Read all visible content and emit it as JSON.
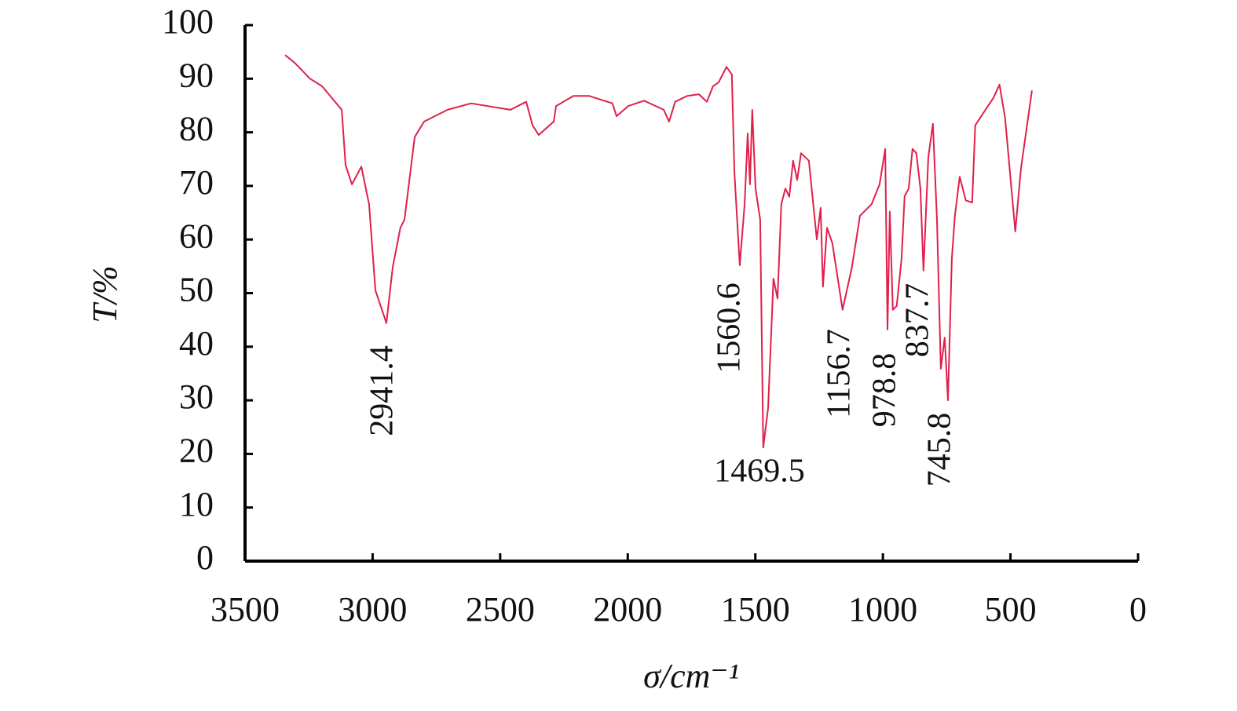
{
  "chart_data": {
    "type": "line",
    "x_label": "σ/cm⁻¹",
    "y_label": "T/%",
    "xlim": [
      3500,
      0
    ],
    "xticks": [
      3500,
      3000,
      2500,
      2000,
      1500,
      1000,
      500,
      0
    ],
    "ylim": [
      0,
      100
    ],
    "yticks": [
      0,
      10,
      20,
      30,
      40,
      50,
      60,
      70,
      80,
      90,
      100
    ],
    "annotations": [
      "2941.4",
      "1560.6",
      "1469.5",
      "1156.7",
      "978.8",
      "837.7",
      "745.8"
    ],
    "series": [
      {
        "color": "#e0204a",
        "x": [
          3343,
          3306,
          3245,
          3198,
          3121,
          3106,
          3081,
          3044,
          3014,
          2989,
          2946,
          2921,
          2891,
          2875,
          2835,
          2798,
          2706,
          2614,
          2460,
          2398,
          2373,
          2349,
          2290,
          2281,
          2213,
          2152,
          2060,
          2044,
          1998,
          1936,
          1859,
          1838,
          1814,
          1767,
          1721,
          1690,
          1666,
          1644,
          1613,
          1592,
          1582,
          1561,
          1542,
          1530,
          1521,
          1512,
          1499,
          1481,
          1469,
          1450,
          1429,
          1413,
          1398,
          1382,
          1367,
          1352,
          1336,
          1321,
          1290,
          1259,
          1244,
          1235,
          1219,
          1198,
          1158,
          1121,
          1090,
          1044,
          1013,
          991,
          982,
          973,
          961,
          946,
          927,
          915,
          899,
          884,
          869,
          853,
          841,
          822,
          804,
          788,
          773,
          758,
          745,
          730,
          718,
          699,
          675,
          650,
          638,
          598,
          567,
          543,
          521,
          481,
          459,
          416
        ],
        "values": [
          94.4,
          93.0,
          90.0,
          88.6,
          84.2,
          73.9,
          70.3,
          73.6,
          66.6,
          50.5,
          44.4,
          54.9,
          62.2,
          63.7,
          79.1,
          82.0,
          84.2,
          85.4,
          84.2,
          85.7,
          81.3,
          79.5,
          82.0,
          84.9,
          86.8,
          86.8,
          85.4,
          83.0,
          84.9,
          85.9,
          84.2,
          82.0,
          85.7,
          86.8,
          87.1,
          85.7,
          88.6,
          89.3,
          92.2,
          90.8,
          72.5,
          55.2,
          66.6,
          79.8,
          70.3,
          84.2,
          69.5,
          63.7,
          21.2,
          28.6,
          52.7,
          49.0,
          66.6,
          69.5,
          68.0,
          74.7,
          71.1,
          76.1,
          74.7,
          60.0,
          65.9,
          51.2,
          62.2,
          59.3,
          46.9,
          54.9,
          64.4,
          66.6,
          70.3,
          76.9,
          43.2,
          65.2,
          46.9,
          47.6,
          56.4,
          68.1,
          69.5,
          76.9,
          76.1,
          69.5,
          54.2,
          75.4,
          81.6,
          63.7,
          35.9,
          41.7,
          30.0,
          56.4,
          64.4,
          71.7,
          67.3,
          66.9,
          81.3,
          84.2,
          86.4,
          88.9,
          82.7,
          61.5,
          73.2,
          87.8
        ]
      }
    ]
  }
}
